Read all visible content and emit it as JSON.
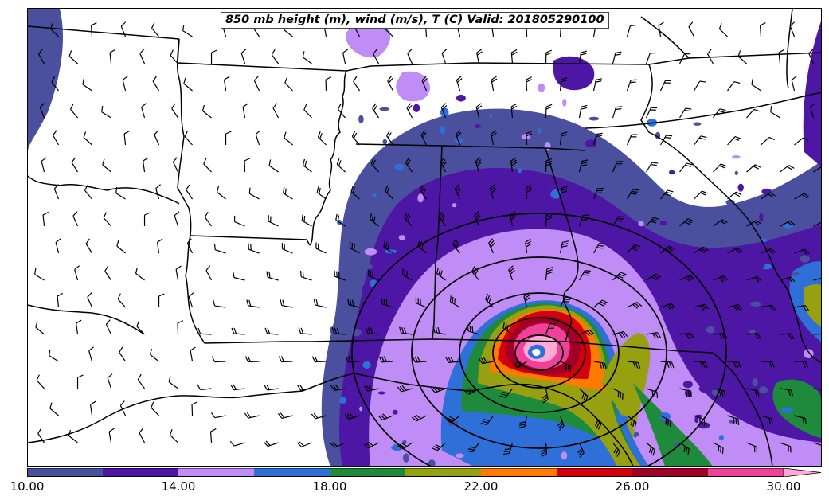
{
  "title": "850 mb height (m), wind (m/s), T (C) Valid: 201805290100",
  "colorbar": {
    "levels": [
      10,
      12,
      14,
      16,
      18,
      20,
      22,
      24,
      26,
      28,
      30
    ],
    "colors": [
      "#4a4f9e",
      "#4d16a5",
      "#c08cf5",
      "#2e6fd8",
      "#1e8a3c",
      "#96a010",
      "#ff7a00",
      "#d4000e",
      "#a00028",
      "#f0409a"
    ],
    "extend_color": "#ffaad6",
    "tick_labels": [
      "10.00",
      "14.00",
      "18.00",
      "22.00",
      "26.00",
      "30.00"
    ]
  }
}
